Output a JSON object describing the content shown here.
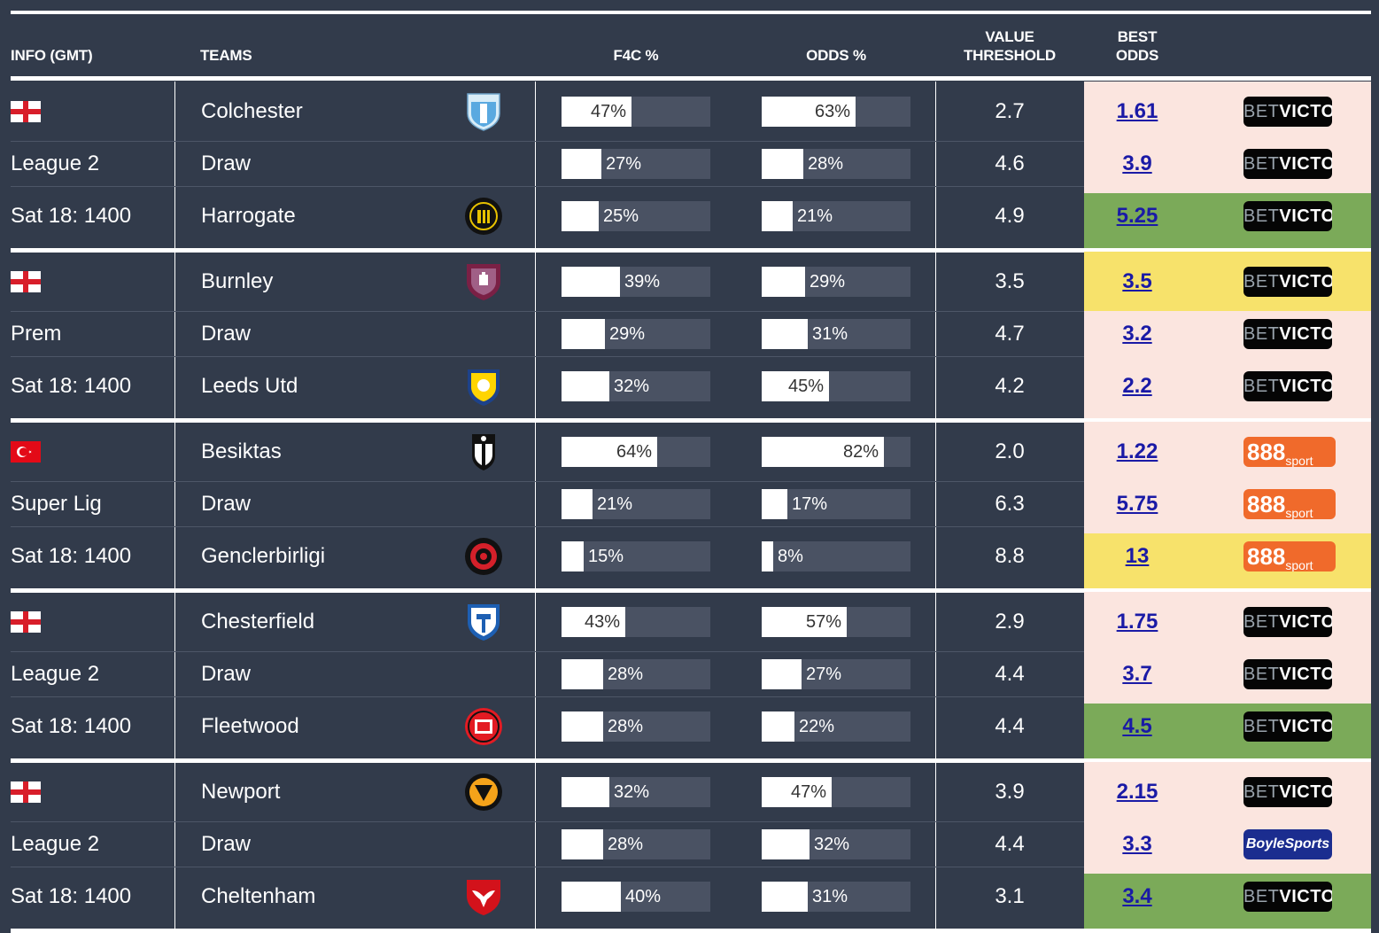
{
  "headers": {
    "info": "INFO (GMT)",
    "teams": "TEAMS",
    "f4c": "F4C %",
    "odds": "ODDS %",
    "value_l1": "VALUE",
    "value_l2": "THRESHOLD",
    "best_l1": "BEST",
    "best_l2": "ODDS"
  },
  "colors": {
    "pink": "#fbe5df",
    "green": "#7baa59",
    "yellow": "#f7e26b",
    "odds_link": "#1a1aa6"
  },
  "matches": [
    {
      "flag": "england-flag-icon",
      "league": "League 2",
      "time": "Sat 18: 1400",
      "rows": [
        {
          "team": "Colchester",
          "crest": "colchester-crest-icon",
          "f4c": 47,
          "f4c_label": "47%",
          "odds_pct": 63,
          "odds_label": "63%",
          "threshold": "2.7",
          "best_odds": "1.61",
          "bookmaker": "BETVICTOR",
          "highlight": "pink"
        },
        {
          "team": "Draw",
          "crest": "",
          "f4c": 27,
          "f4c_label": "27%",
          "odds_pct": 28,
          "odds_label": "28%",
          "threshold": "4.6",
          "best_odds": "3.9",
          "bookmaker": "BETVICTOR",
          "highlight": "pink"
        },
        {
          "team": "Harrogate",
          "crest": "harrogate-crest-icon",
          "f4c": 25,
          "f4c_label": "25%",
          "odds_pct": 21,
          "odds_label": "21%",
          "threshold": "4.9",
          "best_odds": "5.25",
          "bookmaker": "BETVICTOR",
          "highlight": "green"
        }
      ]
    },
    {
      "flag": "england-flag-icon",
      "league": "Prem",
      "time": "Sat 18: 1400",
      "rows": [
        {
          "team": "Burnley",
          "crest": "burnley-crest-icon",
          "f4c": 39,
          "f4c_label": "39%",
          "odds_pct": 29,
          "odds_label": "29%",
          "threshold": "3.5",
          "best_odds": "3.5",
          "bookmaker": "BETVICTOR",
          "highlight": "yellow"
        },
        {
          "team": "Draw",
          "crest": "",
          "f4c": 29,
          "f4c_label": "29%",
          "odds_pct": 31,
          "odds_label": "31%",
          "threshold": "4.7",
          "best_odds": "3.2",
          "bookmaker": "BETVICTOR",
          "highlight": "pink"
        },
        {
          "team": "Leeds Utd",
          "crest": "leeds-crest-icon",
          "f4c": 32,
          "f4c_label": "32%",
          "odds_pct": 45,
          "odds_label": "45%",
          "threshold": "4.2",
          "best_odds": "2.2",
          "bookmaker": "BETVICTOR",
          "highlight": "pink"
        }
      ]
    },
    {
      "flag": "turkey-flag-icon",
      "league": "Super Lig",
      "time": "Sat 18: 1400",
      "rows": [
        {
          "team": "Besiktas",
          "crest": "besiktas-crest-icon",
          "f4c": 64,
          "f4c_label": "64%",
          "odds_pct": 82,
          "odds_label": "82%",
          "threshold": "2.0",
          "best_odds": "1.22",
          "bookmaker": "888sport",
          "highlight": "pink"
        },
        {
          "team": "Draw",
          "crest": "",
          "f4c": 21,
          "f4c_label": "21%",
          "odds_pct": 17,
          "odds_label": "17%",
          "threshold": "6.3",
          "best_odds": "5.75",
          "bookmaker": "888sport",
          "highlight": "pink"
        },
        {
          "team": "Genclerbirligi",
          "crest": "genclerbirligi-crest-icon",
          "f4c": 15,
          "f4c_label": "15%",
          "odds_pct": 8,
          "odds_label": "8%",
          "threshold": "8.8",
          "best_odds": "13",
          "bookmaker": "888sport",
          "highlight": "yellow"
        }
      ]
    },
    {
      "flag": "england-flag-icon",
      "league": "League 2",
      "time": "Sat 18: 1400",
      "rows": [
        {
          "team": "Chesterfield",
          "crest": "chesterfield-crest-icon",
          "f4c": 43,
          "f4c_label": "43%",
          "odds_pct": 57,
          "odds_label": "57%",
          "threshold": "2.9",
          "best_odds": "1.75",
          "bookmaker": "BETVICTOR",
          "highlight": "pink"
        },
        {
          "team": "Draw",
          "crest": "",
          "f4c": 28,
          "f4c_label": "28%",
          "odds_pct": 27,
          "odds_label": "27%",
          "threshold": "4.4",
          "best_odds": "3.7",
          "bookmaker": "BETVICTOR",
          "highlight": "pink"
        },
        {
          "team": "Fleetwood",
          "crest": "fleetwood-crest-icon",
          "f4c": 28,
          "f4c_label": "28%",
          "odds_pct": 22,
          "odds_label": "22%",
          "threshold": "4.4",
          "best_odds": "4.5",
          "bookmaker": "BETVICTOR",
          "highlight": "green"
        }
      ]
    },
    {
      "flag": "england-flag-icon",
      "league": "League 2",
      "time": "Sat 18: 1400",
      "rows": [
        {
          "team": "Newport",
          "crest": "newport-crest-icon",
          "f4c": 32,
          "f4c_label": "32%",
          "odds_pct": 47,
          "odds_label": "47%",
          "threshold": "3.9",
          "best_odds": "2.15",
          "bookmaker": "BETVICTOR",
          "highlight": "pink"
        },
        {
          "team": "Draw",
          "crest": "",
          "f4c": 28,
          "f4c_label": "28%",
          "odds_pct": 32,
          "odds_label": "32%",
          "threshold": "4.4",
          "best_odds": "3.3",
          "bookmaker": "BoyleSports",
          "highlight": "pink"
        },
        {
          "team": "Cheltenham",
          "crest": "cheltenham-crest-icon",
          "f4c": 40,
          "f4c_label": "40%",
          "odds_pct": 31,
          "odds_label": "31%",
          "threshold": "3.1",
          "best_odds": "3.4",
          "bookmaker": "BETVICTOR",
          "highlight": "green"
        }
      ]
    }
  ]
}
